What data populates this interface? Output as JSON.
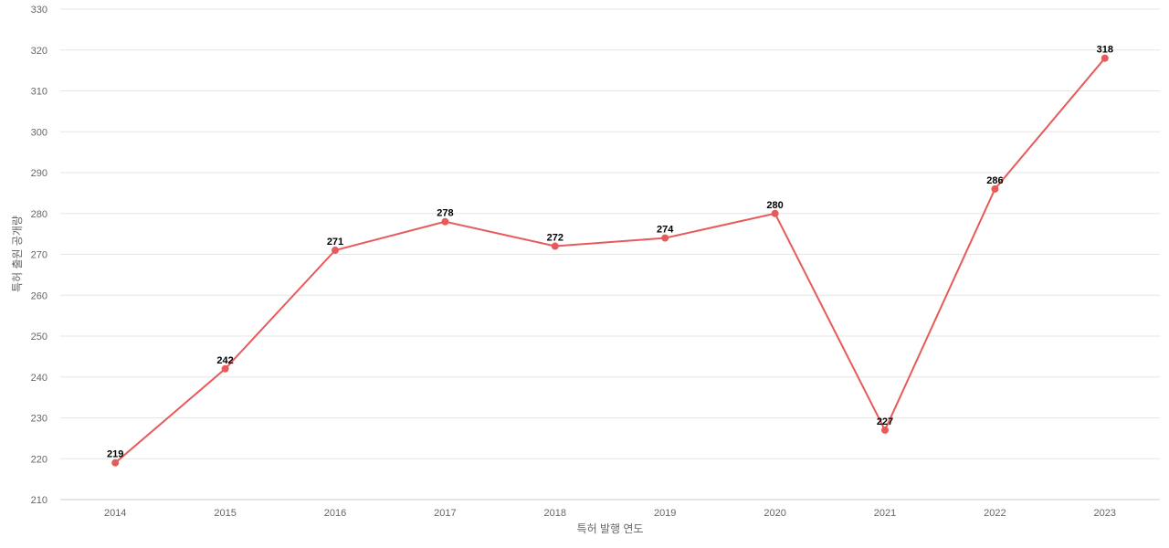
{
  "chart_data": {
    "type": "line",
    "title": "",
    "xlabel": "특허 발행 연도",
    "ylabel": "특허 출원 공개량",
    "categories": [
      "2014",
      "2015",
      "2016",
      "2017",
      "2018",
      "2019",
      "2020",
      "2021",
      "2022",
      "2023"
    ],
    "values": [
      219,
      242,
      271,
      278,
      272,
      274,
      280,
      227,
      286,
      318
    ],
    "ylim": [
      210,
      330
    ],
    "yticks": [
      210,
      220,
      230,
      240,
      250,
      260,
      270,
      280,
      290,
      300,
      310,
      320,
      330
    ],
    "grid": true,
    "legend": "none",
    "color": "#e85a5a"
  }
}
